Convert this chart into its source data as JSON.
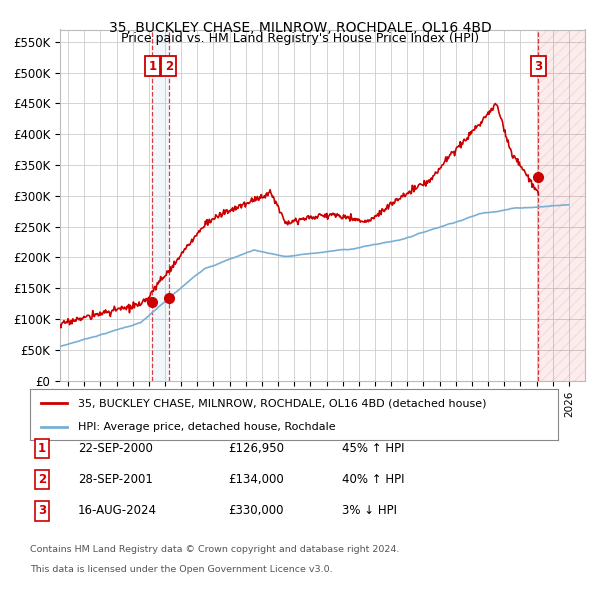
{
  "title": "35, BUCKLEY CHASE, MILNROW, ROCHDALE, OL16 4BD",
  "subtitle": "Price paid vs. HM Land Registry's House Price Index (HPI)",
  "ylim": [
    0,
    570000
  ],
  "yticks": [
    0,
    50000,
    100000,
    150000,
    200000,
    250000,
    300000,
    350000,
    400000,
    450000,
    500000,
    550000
  ],
  "xlim_start": 1995.0,
  "xlim_end": 2027.5,
  "background_color": "#ffffff",
  "grid_color": "#cccccc",
  "hpi_color": "#7aafd4",
  "price_color": "#cc0000",
  "transactions": [
    {
      "num": 1,
      "date_x": 2000.72,
      "price": 126950,
      "label": "1",
      "date_str": "22-SEP-2000",
      "price_str": "£126,950",
      "pct": "45%",
      "dir": "↑"
    },
    {
      "num": 2,
      "date_x": 2001.74,
      "price": 134000,
      "label": "2",
      "date_str": "28-SEP-2001",
      "price_str": "£134,000",
      "pct": "40%",
      "dir": "↑"
    },
    {
      "num": 3,
      "date_x": 2024.62,
      "price": 330000,
      "label": "3",
      "date_str": "16-AUG-2024",
      "price_str": "£330,000",
      "pct": "3%",
      "dir": "↓"
    }
  ],
  "legend_entries": [
    {
      "label": "35, BUCKLEY CHASE, MILNROW, ROCHDALE, OL16 4BD (detached house)",
      "color": "#cc0000",
      "lw": 2
    },
    {
      "label": "HPI: Average price, detached house, Rochdale",
      "color": "#7aafd4",
      "lw": 2
    }
  ],
  "footer_lines": [
    "Contains HM Land Registry data © Crown copyright and database right 2024.",
    "This data is licensed under the Open Government Licence v3.0."
  ],
  "hatch_color": "#cc0000",
  "future_hatch_start": 2024.62
}
